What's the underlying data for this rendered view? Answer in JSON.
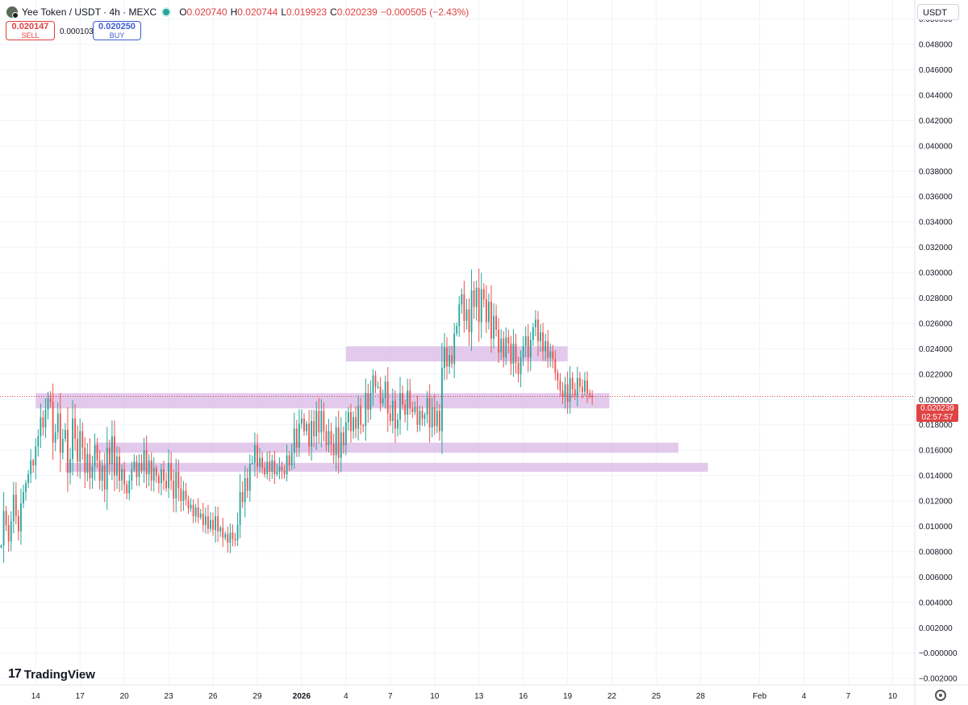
{
  "header": {
    "symbol": "Yee Token / USDT · 4h · MEXC",
    "open_label": "O",
    "open": "0.020740",
    "high_label": "H",
    "high": "0.020744",
    "low_label": "L",
    "low": "0.019923",
    "close_label": "C",
    "close": "0.020239",
    "change": "−0.000505 (−2.43%)"
  },
  "trade": {
    "sell_price": "0.020147",
    "sell_label": "SELL",
    "spread": "0.000103",
    "buy_price": "0.020250",
    "buy_label": "BUY"
  },
  "currency": "USDT",
  "last_price": {
    "value": "0.020239",
    "countdown": "02:57:57"
  },
  "logo": "TradingView",
  "colors": {
    "up": "#26a69a",
    "down": "#ef5350",
    "zone": "#d9b8e6",
    "grid": "#f0f3fa",
    "price_tag": "#e04343"
  },
  "chart_data": {
    "type": "candlestick",
    "y_ticks": [
      "0.050000",
      "0.048000",
      "0.046000",
      "0.044000",
      "0.042000",
      "0.040000",
      "0.038000",
      "0.036000",
      "0.034000",
      "0.032000",
      "0.030000",
      "0.028000",
      "0.026000",
      "0.024000",
      "0.022000",
      "0.020000",
      "0.018000",
      "0.016000",
      "0.014000",
      "0.012000",
      "0.010000",
      "0.008000",
      "0.006000",
      "0.004000",
      "0.002000",
      "−0.000000",
      "−0.002000"
    ],
    "ylim": [
      -0.0025,
      0.0515
    ],
    "x_ticks": [
      {
        "label": "14",
        "date": "2025-12-14"
      },
      {
        "label": "17",
        "date": "2025-12-17"
      },
      {
        "label": "20",
        "date": "2025-12-20"
      },
      {
        "label": "23",
        "date": "2025-12-23"
      },
      {
        "label": "26",
        "date": "2025-12-26"
      },
      {
        "label": "29",
        "date": "2025-12-29"
      },
      {
        "label": "2026",
        "date": "2026-01-01",
        "bold": true
      },
      {
        "label": "4",
        "date": "2026-01-04"
      },
      {
        "label": "7",
        "date": "2026-01-07"
      },
      {
        "label": "10",
        "date": "2026-01-10"
      },
      {
        "label": "13",
        "date": "2026-01-13"
      },
      {
        "label": "16",
        "date": "2026-01-16"
      },
      {
        "label": "19",
        "date": "2026-01-19"
      },
      {
        "label": "22",
        "date": "2026-01-22"
      },
      {
        "label": "25",
        "date": "2026-01-25"
      },
      {
        "label": "28",
        "date": "2026-01-28"
      },
      {
        "label": "Feb",
        "date": "2026-02-01"
      },
      {
        "label": "4",
        "date": "2026-02-04"
      },
      {
        "label": "7",
        "date": "2026-02-07"
      },
      {
        "label": "10",
        "date": "2026-02-10"
      }
    ],
    "xlim": [
      "2025-12-11T14:00",
      "2026-02-11T12:00"
    ],
    "grid": true,
    "zones": [
      {
        "start": "2026-01-04T00:00",
        "end": "2026-01-19T00:00",
        "low": 0.023,
        "high": 0.0242
      },
      {
        "start": "2025-12-14T00:00",
        "end": "2026-01-21T20:00",
        "low": 0.0193,
        "high": 0.0205
      },
      {
        "start": "2025-12-18T00:00",
        "end": "2026-01-26T12:00",
        "low": 0.0158,
        "high": 0.0166
      },
      {
        "start": "2025-12-16T00:00",
        "end": "2026-01-28T12:00",
        "low": 0.0143,
        "high": 0.015
      }
    ],
    "price_line": 0.020239,
    "candle_interval": "4h",
    "candles_start": "2025-12-11T16:00",
    "close": [
      0.0085,
      0.0112,
      0.0101,
      0.0088,
      0.0104,
      0.0125,
      0.0108,
      0.0096,
      0.0118,
      0.0127,
      0.0134,
      0.0141,
      0.0152,
      0.0148,
      0.0163,
      0.0171,
      0.0186,
      0.0178,
      0.0192,
      0.0201,
      0.0198,
      0.0166,
      0.0174,
      0.0189,
      0.0158,
      0.0169,
      0.0176,
      0.0142,
      0.0153,
      0.0185,
      0.0169,
      0.0151,
      0.0175,
      0.0162,
      0.0142,
      0.0157,
      0.0138,
      0.0147,
      0.0164,
      0.0152,
      0.0136,
      0.0148,
      0.0129,
      0.0162,
      0.0149,
      0.0171,
      0.014,
      0.0155,
      0.0136,
      0.0145,
      0.0133,
      0.0126,
      0.0136,
      0.0145,
      0.0151,
      0.0139,
      0.015,
      0.0144,
      0.016,
      0.0141,
      0.0152,
      0.0136,
      0.0146,
      0.014,
      0.0134,
      0.0145,
      0.0136,
      0.013,
      0.015,
      0.0136,
      0.0122,
      0.0143,
      0.013,
      0.012,
      0.0128,
      0.0121,
      0.0114,
      0.0117,
      0.0108,
      0.0115,
      0.0107,
      0.011,
      0.0101,
      0.0108,
      0.0098,
      0.0105,
      0.0097,
      0.0108,
      0.0096,
      0.0099,
      0.0091,
      0.0094,
      0.0087,
      0.0095,
      0.009,
      0.0089,
      0.0101,
      0.0127,
      0.0119,
      0.0138,
      0.0128,
      0.0149,
      0.015,
      0.0164,
      0.0147,
      0.0154,
      0.0146,
      0.0141,
      0.0151,
      0.0143,
      0.0152,
      0.0141,
      0.0143,
      0.0147,
      0.0144,
      0.0141,
      0.0156,
      0.0148,
      0.0158,
      0.0177,
      0.0162,
      0.0181,
      0.0185,
      0.0175,
      0.0181,
      0.0163,
      0.0183,
      0.0171,
      0.0191,
      0.0174,
      0.0191,
      0.0175,
      0.0164,
      0.0175,
      0.0165,
      0.0156,
      0.0178,
      0.0154,
      0.0174,
      0.0164,
      0.0182,
      0.019,
      0.0175,
      0.0186,
      0.0177,
      0.0195,
      0.018,
      0.0179,
      0.0205,
      0.0192,
      0.0205,
      0.0219,
      0.021,
      0.021,
      0.0197,
      0.0201,
      0.0214,
      0.0189,
      0.0183,
      0.0199,
      0.0177,
      0.0184,
      0.0205,
      0.0196,
      0.0188,
      0.0207,
      0.0193,
      0.019,
      0.0194,
      0.018,
      0.0191,
      0.0185,
      0.0188,
      0.0201,
      0.0178,
      0.0194,
      0.0179,
      0.0191,
      0.0175,
      0.0225,
      0.0241,
      0.0226,
      0.0235,
      0.0228,
      0.0252,
      0.0258,
      0.0275,
      0.0283,
      0.0262,
      0.0271,
      0.0253,
      0.0286,
      0.0273,
      0.0288,
      0.0261,
      0.0287,
      0.0279,
      0.0261,
      0.0277,
      0.0248,
      0.0266,
      0.0255,
      0.0237,
      0.0248,
      0.0233,
      0.0249,
      0.0244,
      0.0228,
      0.0244,
      0.0229,
      0.022,
      0.0233,
      0.0242,
      0.025,
      0.0233,
      0.0247,
      0.0257,
      0.0263,
      0.0246,
      0.0253,
      0.0238,
      0.0246,
      0.0233,
      0.0238,
      0.0232,
      0.0221,
      0.0215,
      0.0207,
      0.0202,
      0.0212,
      0.0198,
      0.0217,
      0.0208,
      0.0203,
      0.0217,
      0.021,
      0.0206,
      0.0215,
      0.0205,
      0.0203,
      0.0202
    ]
  }
}
